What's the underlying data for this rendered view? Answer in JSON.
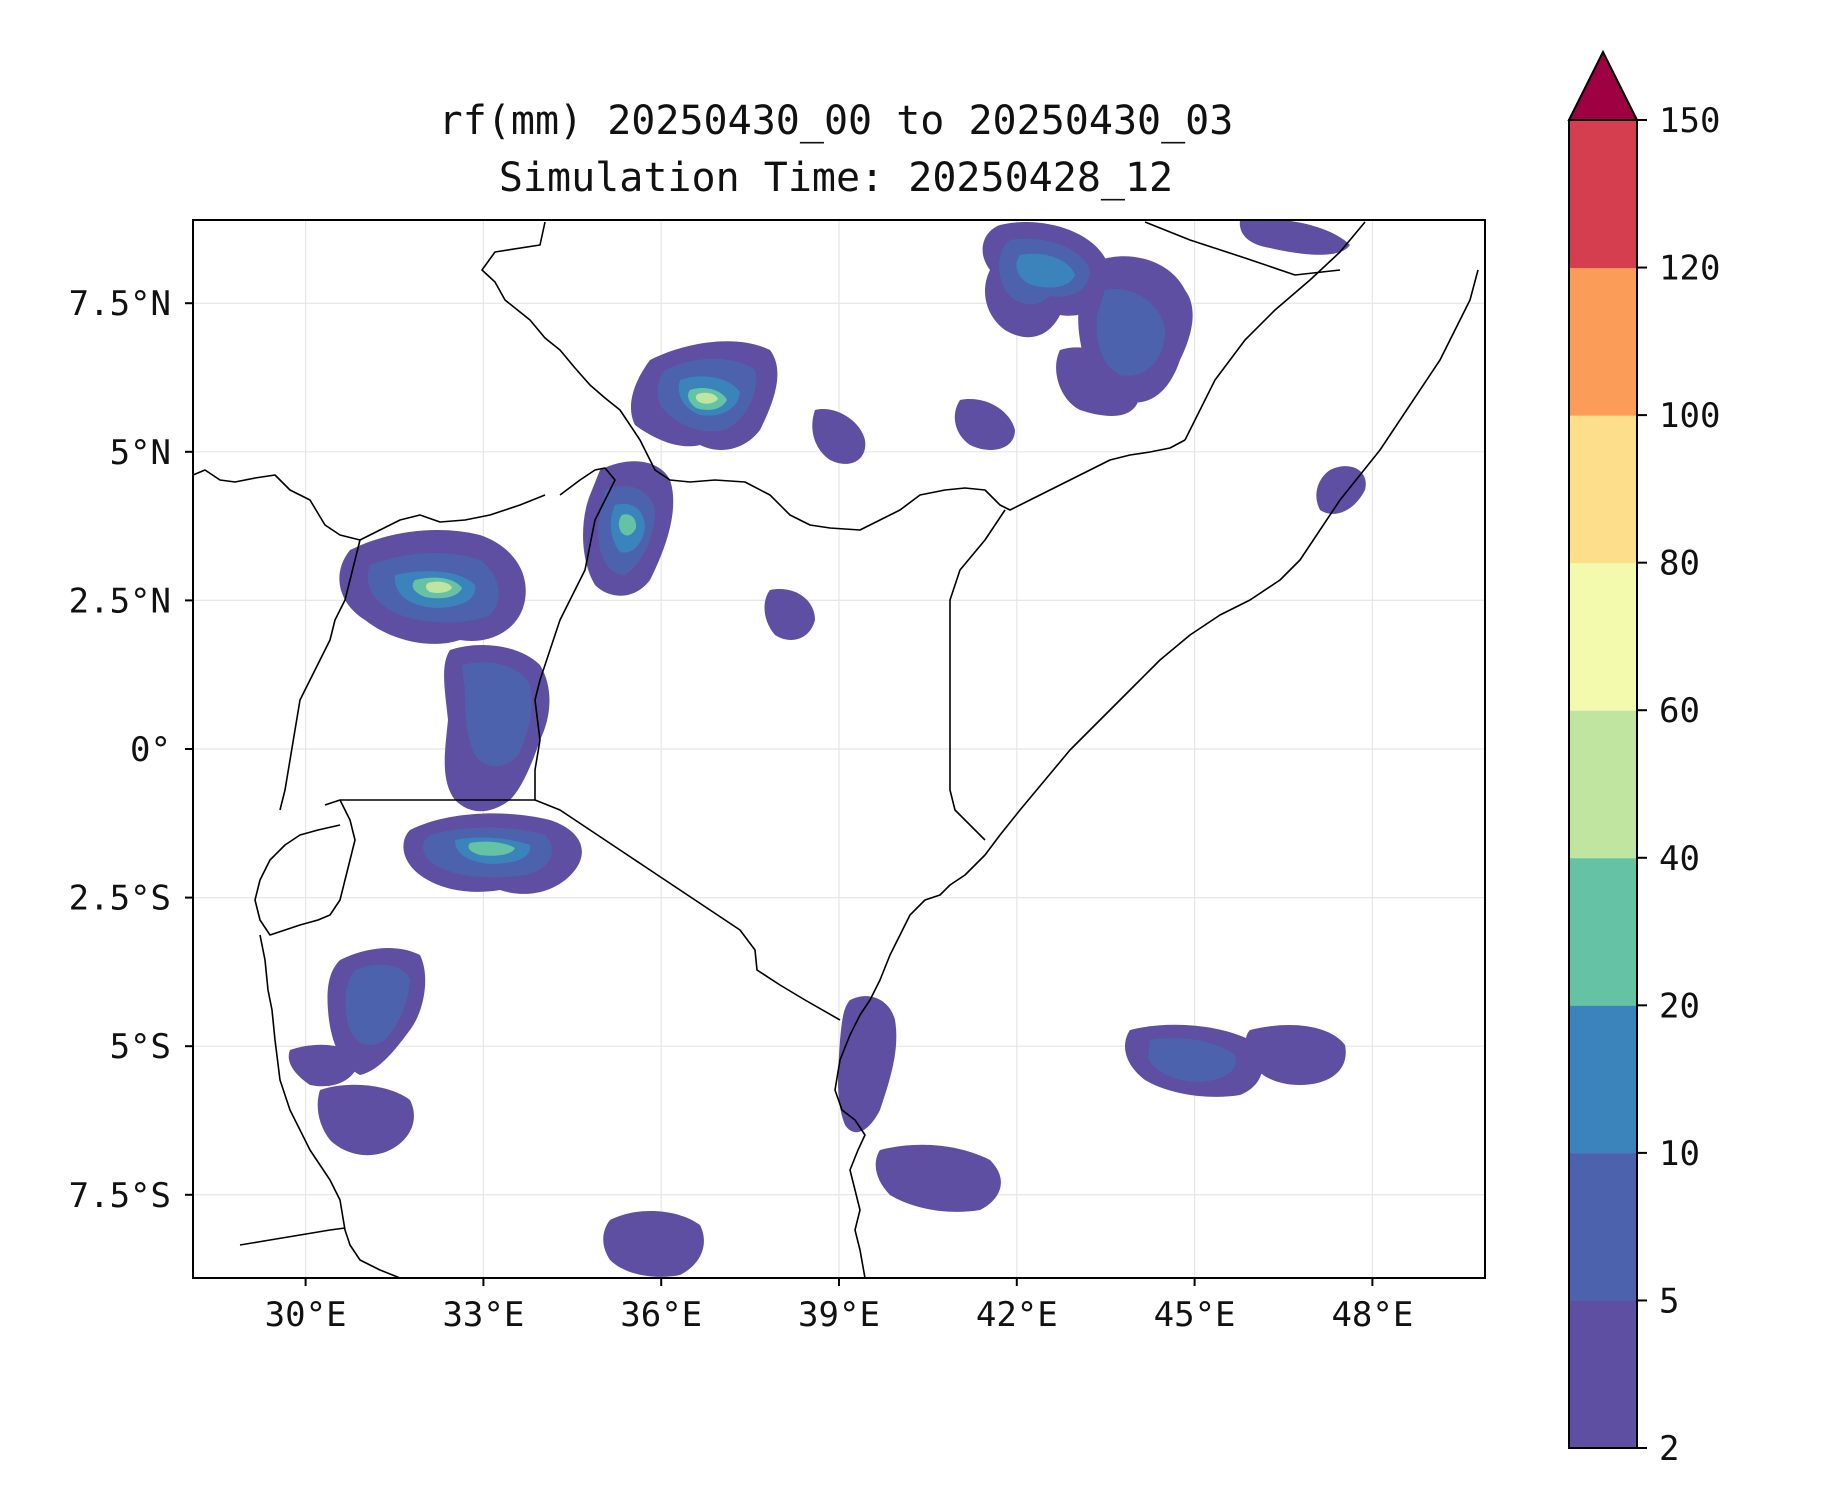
{
  "title": {
    "line1": "rf(mm) 20250430_00 to 20250430_03",
    "line2": "Simulation Time: 20250428_12"
  },
  "map": {
    "variable": "rf (mm)",
    "lon_range": [
      28.1,
      49.9
    ],
    "lat_range": [
      -8.9,
      8.9
    ],
    "lon_ticks": [
      {
        "value": 30,
        "label": "30°E"
      },
      {
        "value": 33,
        "label": "33°E"
      },
      {
        "value": 36,
        "label": "36°E"
      },
      {
        "value": 39,
        "label": "39°E"
      },
      {
        "value": 42,
        "label": "42°E"
      },
      {
        "value": 45,
        "label": "45°E"
      },
      {
        "value": 48,
        "label": "48°E"
      }
    ],
    "lat_ticks": [
      {
        "value": 7.5,
        "label": "7.5°N"
      },
      {
        "value": 5,
        "label": "5°N"
      },
      {
        "value": 2.5,
        "label": "2.5°N"
      },
      {
        "value": 0,
        "label": "0°"
      },
      {
        "value": -2.5,
        "label": "2.5°S"
      },
      {
        "value": -5,
        "label": "5°S"
      },
      {
        "value": -7.5,
        "label": "7.5°S"
      }
    ],
    "grid": true,
    "colors": {
      "border": "#000000",
      "grid": "#e6e6e6"
    }
  },
  "colorbar": {
    "extend": "max",
    "extend_color": "#9e0142",
    "bins": [
      {
        "from": 2,
        "to": 5,
        "color": "#5e4fa2"
      },
      {
        "from": 5,
        "to": 10,
        "color": "#4d62ad"
      },
      {
        "from": 10,
        "to": 20,
        "color": "#3a83bb"
      },
      {
        "from": 20,
        "to": 40,
        "color": "#66c2a5"
      },
      {
        "from": 40,
        "to": 60,
        "color": "#bfe5a0"
      },
      {
        "from": 60,
        "to": 80,
        "color": "#f3faad"
      },
      {
        "from": 80,
        "to": 100,
        "color": "#fddf8b"
      },
      {
        "from": 100,
        "to": 120,
        "color": "#fb9d59"
      },
      {
        "from": 120,
        "to": 150,
        "color": "#d53e4f"
      }
    ],
    "tick_labels": [
      "2",
      "5",
      "10",
      "20",
      "40",
      "60",
      "80",
      "100",
      "120",
      "150"
    ]
  }
}
